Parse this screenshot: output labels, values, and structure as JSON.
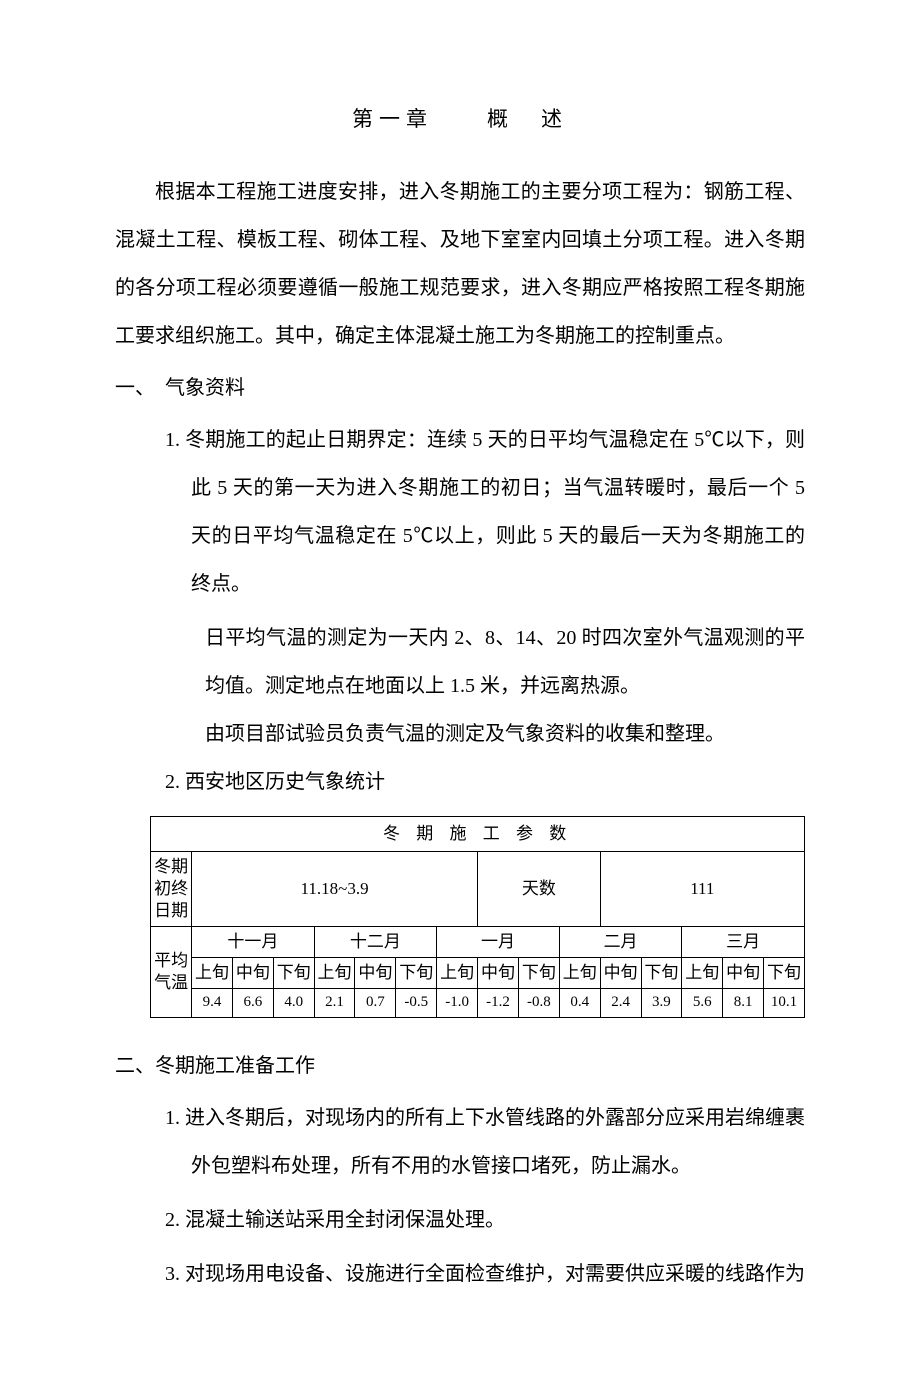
{
  "chapter_title": "第一章　　概　述",
  "intro_paragraph": "根据本工程施工进度安排，进入冬期施工的主要分项工程为：钢筋工程、混凝土工程、模板工程、砌体工程、及地下室室内回填土分项工程。进入冬期的各分项工程必须要遵循一般施工规范要求，进入冬期应严格按照工程冬期施工要求组织施工。其中，确定主体混凝土施工为冬期施工的控制重点。",
  "section1": {
    "title": "一、　气象资料",
    "item1": "1.  冬期施工的起止日期界定：连续 5 天的日平均气温稳定在 5℃以下，则此 5 天的第一天为进入冬期施工的初日；当气温转暖时，最后一个 5 天的日平均气温稳定在 5℃以上，则此 5 天的最后一天为冬期施工的终点。",
    "item1_cont1": "日平均气温的测定为一天内 2、8、14、20 时四次室外气温观测的平均值。测定地点在地面以上 1.5 米，并远离热源。",
    "item1_cont2": "由项目部试验员负责气温的测定及气象资料的收集和整理。",
    "item2": "2.  西安地区历史气象统计"
  },
  "table": {
    "title": "冬 期 施 工 参 数",
    "row1_label": "冬期初终日期",
    "row1_val1": "11.18~3.9",
    "row1_label2": "天数",
    "row1_val2": "111",
    "avg_temp_label": "平均气温",
    "months": [
      "十一月",
      "十二月",
      "一月",
      "二月",
      "三月"
    ],
    "periods": [
      "上旬",
      "中旬",
      "下旬",
      "上旬",
      "中旬",
      "下旬",
      "上旬",
      "中旬",
      "下旬",
      "上旬",
      "中旬",
      "下旬",
      "上旬",
      "中旬",
      "下旬"
    ],
    "values": [
      "9.4",
      "6.6",
      "4.0",
      "2.1",
      "0.7",
      "-0.5",
      "-1.0",
      "-1.2",
      "-0.8",
      "0.4",
      "2.4",
      "3.9",
      "5.6",
      "8.1",
      "10.1"
    ]
  },
  "section2": {
    "title": "二、冬期施工准备工作",
    "item1": "1.  进入冬期后，对现场内的所有上下水管线路的外露部分应采用岩绵缠裹外包塑料布处理，所有不用的水管接口堵死，防止漏水。",
    "item2": "2.  混凝土输送站采用全封闭保温处理。",
    "item3": "3.  对现场用电设备、设施进行全面检查维护，对需要供应采暖的线路作为"
  }
}
